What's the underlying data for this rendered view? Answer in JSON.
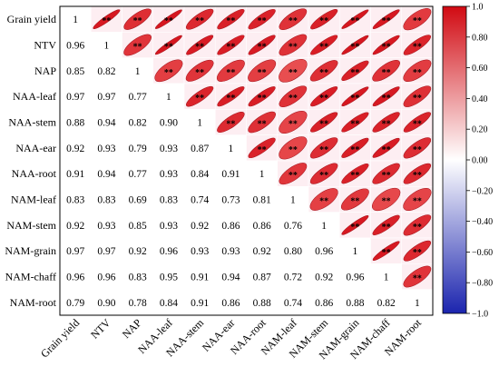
{
  "chart_data": {
    "type": "heatmap",
    "variables": [
      "Grain yield",
      "NTV",
      "NAP",
      "NAA-leaf",
      "NAA-stem",
      "NAA-ear",
      "NAA-root",
      "NAM-leaf",
      "NAM-stem",
      "NAM-grain",
      "NAM-chaff",
      "NAM-root"
    ],
    "lower_values": [
      [
        "1"
      ],
      [
        "0.96",
        "1"
      ],
      [
        "0.85",
        "0.82",
        "1"
      ],
      [
        "0.97",
        "0.97",
        "0.77",
        "1"
      ],
      [
        "0.88",
        "0.94",
        "0.82",
        "0.90",
        "1"
      ],
      [
        "0.92",
        "0.93",
        "0.79",
        "0.93",
        "0.87",
        "1"
      ],
      [
        "0.91",
        "0.94",
        "0.77",
        "0.93",
        "0.84",
        "0.91",
        "1"
      ],
      [
        "0.83",
        "0.83",
        "0.69",
        "0.83",
        "0.74",
        "0.73",
        "0.81",
        "1"
      ],
      [
        "0.92",
        "0.93",
        "0.85",
        "0.93",
        "0.92",
        "0.86",
        "0.86",
        "0.76",
        "1"
      ],
      [
        "0.97",
        "0.97",
        "0.92",
        "0.96",
        "0.93",
        "0.93",
        "0.92",
        "0.80",
        "0.96",
        "1"
      ],
      [
        "0.96",
        "0.96",
        "0.83",
        "0.95",
        "0.91",
        "0.94",
        "0.87",
        "0.72",
        "0.92",
        "0.96",
        "1"
      ],
      [
        "0.79",
        "0.90",
        "0.78",
        "0.84",
        "0.91",
        "0.86",
        "0.88",
        "0.74",
        "0.86",
        "0.88",
        "0.82",
        "1"
      ]
    ],
    "significance_mark": "**",
    "upper_display": "ellipse",
    "colorbar": {
      "range": [
        -1.0,
        1.0
      ],
      "ticks": [
        "1.0",
        "0.80",
        "0.60",
        "0.40",
        "0.20",
        "0.00",
        "−0.20",
        "−0.40",
        "−0.60",
        "−0.80",
        "−1.0"
      ],
      "colors": {
        "neg": "#1f2bb5",
        "mid": "#ffffff",
        "pos": "#e0141c"
      },
      "placement": "right"
    }
  }
}
